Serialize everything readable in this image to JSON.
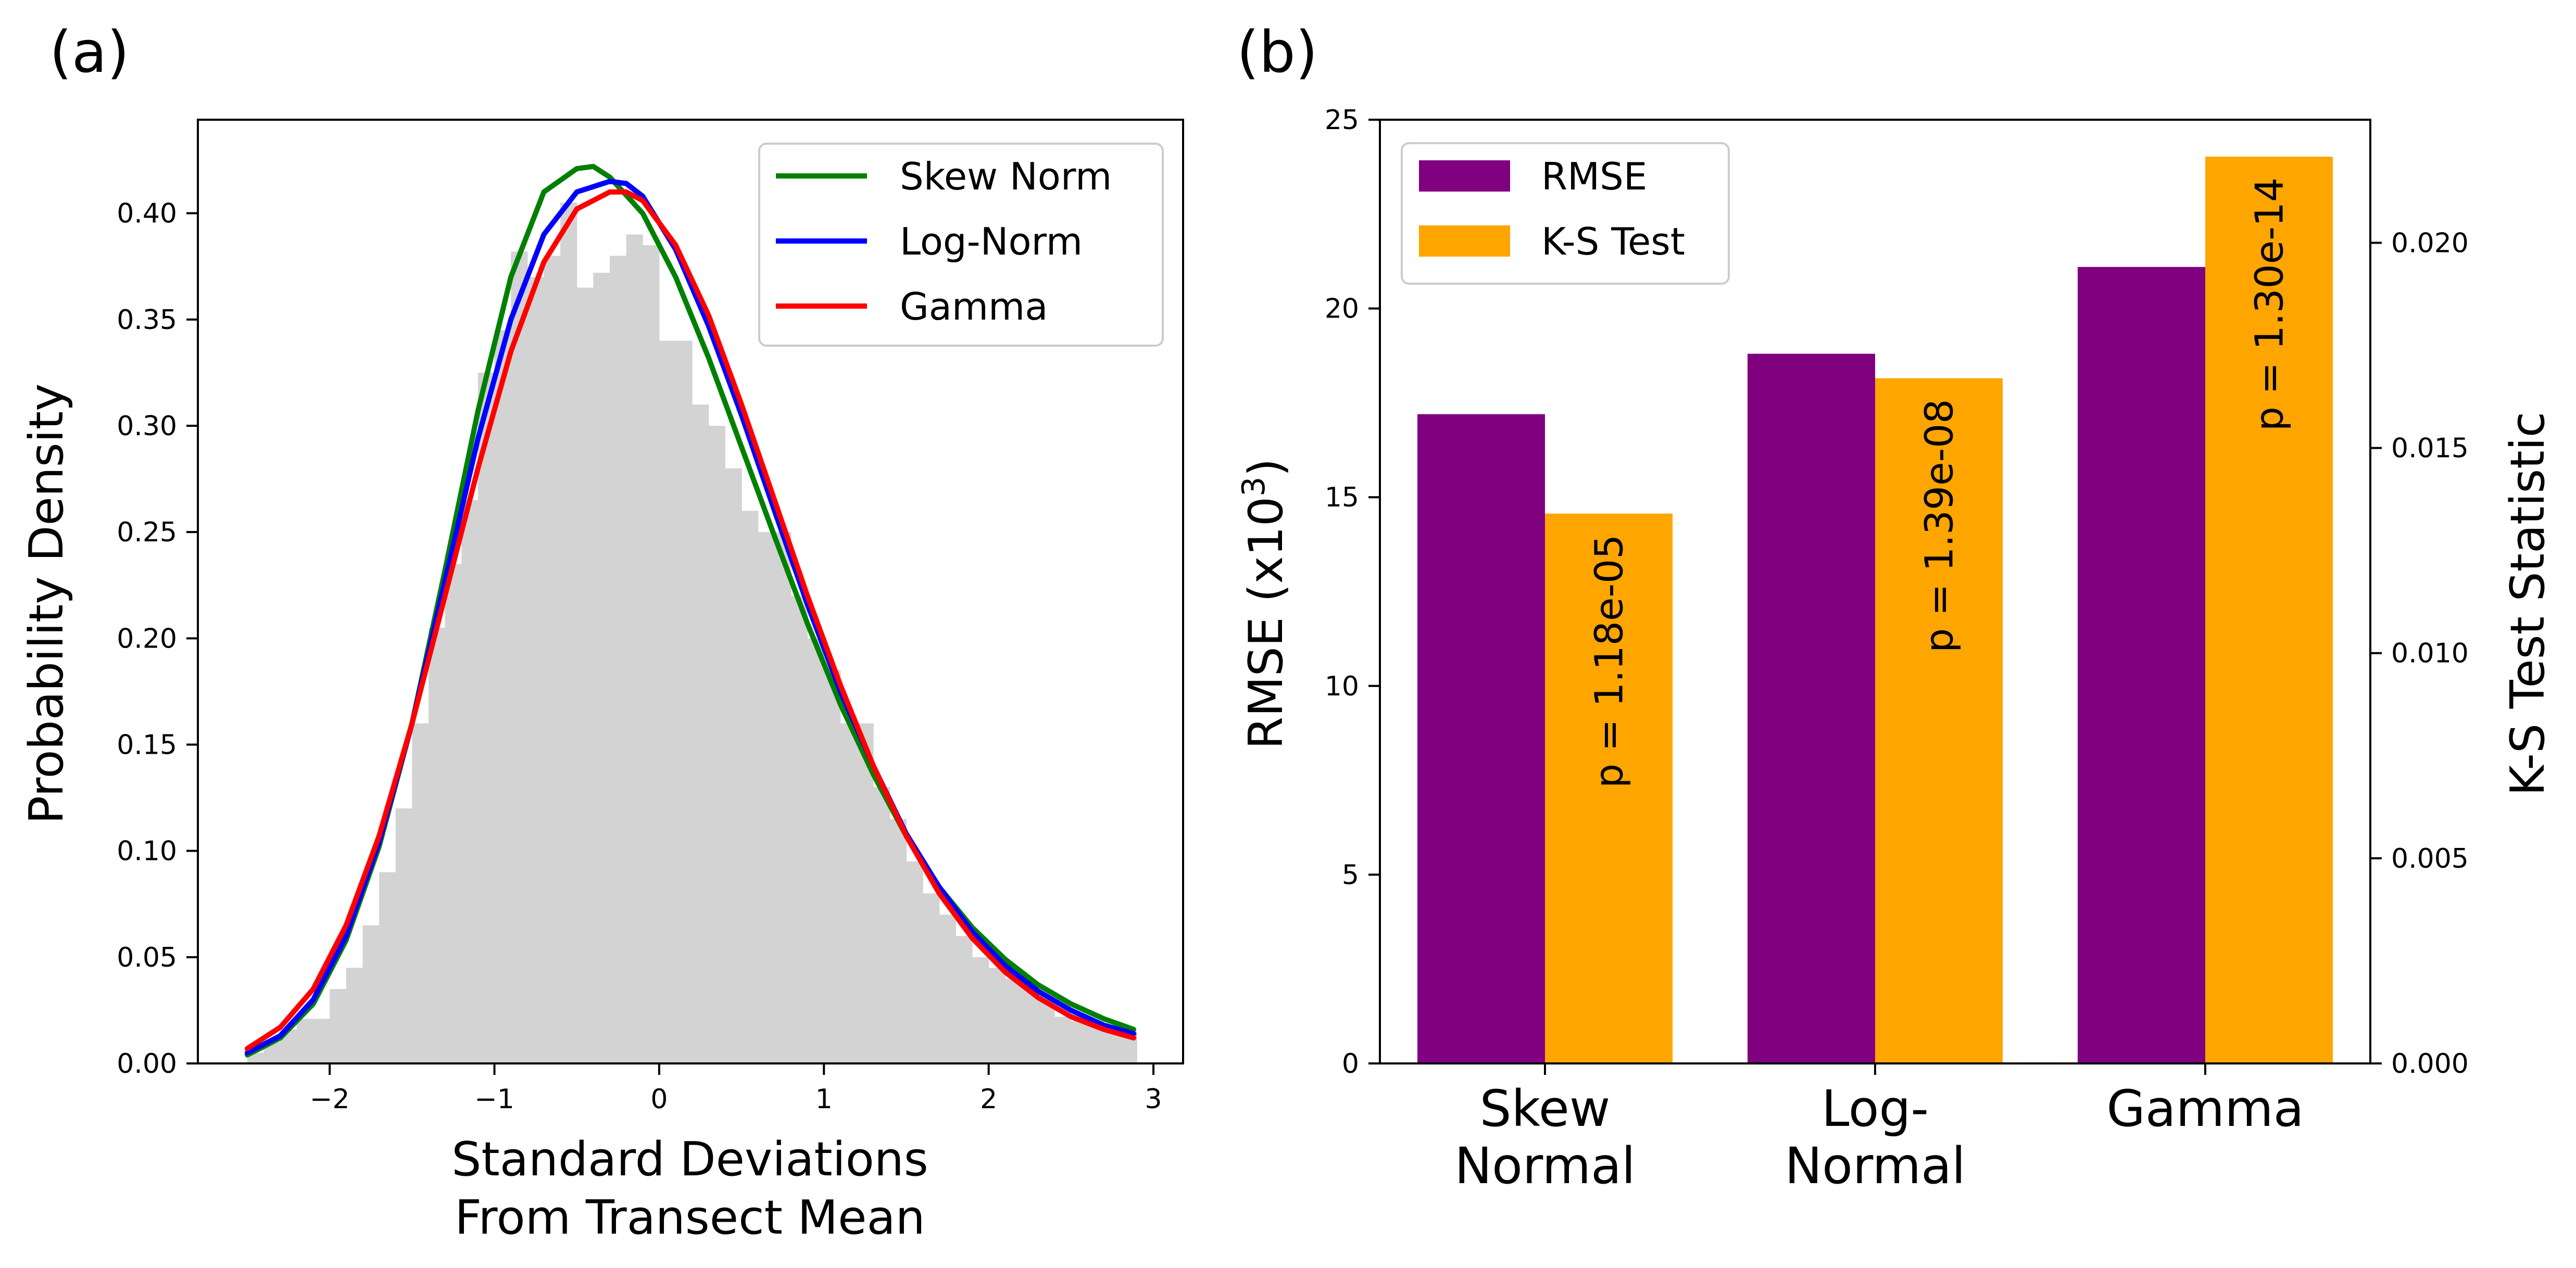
{
  "chart_data": [
    {
      "panel_label": "(a)",
      "type": "histogram+line",
      "xlabel_lines": [
        "Standard Deviations",
        "From Transect Mean"
      ],
      "ylabel": "Probability Density",
      "xlim": [
        -2.8,
        3.18
      ],
      "ylim": [
        0.0,
        0.444
      ],
      "xticks": [
        -2,
        -1,
        0,
        1,
        2,
        3
      ],
      "xtick_labels": [
        "−2",
        "−1",
        "0",
        "1",
        "2",
        "3"
      ],
      "yticks": [
        0.0,
        0.05,
        0.1,
        0.15,
        0.2,
        0.25,
        0.3,
        0.35,
        0.4
      ],
      "ytick_labels": [
        "0.00",
        "0.05",
        "0.10",
        "0.15",
        "0.20",
        "0.25",
        "0.30",
        "0.35",
        "0.40"
      ],
      "histogram": {
        "color": "#d3d3d3",
        "x_start": -2.5,
        "bin_width": 0.1,
        "values": [
          0.005,
          0.01,
          0.016,
          0.021,
          0.021,
          0.035,
          0.045,
          0.065,
          0.09,
          0.12,
          0.16,
          0.205,
          0.235,
          0.265,
          0.325,
          0.345,
          0.382,
          0.37,
          0.38,
          0.405,
          0.365,
          0.372,
          0.38,
          0.39,
          0.385,
          0.34,
          0.34,
          0.31,
          0.3,
          0.28,
          0.26,
          0.25,
          0.25,
          0.22,
          0.2,
          0.185,
          0.16,
          0.16,
          0.13,
          0.115,
          0.095,
          0.08,
          0.07,
          0.06,
          0.05,
          0.045,
          0.04,
          0.035,
          0.03,
          0.022,
          0.02,
          0.018,
          0.016,
          0.015
        ]
      },
      "series": [
        {
          "name": "Skew Norm",
          "color": "#008000",
          "x": [
            -2.5,
            -2.3,
            -2.1,
            -1.9,
            -1.7,
            -1.5,
            -1.3,
            -1.1,
            -0.9,
            -0.7,
            -0.5,
            -0.4,
            -0.3,
            -0.1,
            0.1,
            0.3,
            0.5,
            0.7,
            0.9,
            1.1,
            1.3,
            1.5,
            1.7,
            1.9,
            2.1,
            2.3,
            2.5,
            2.7,
            2.88
          ],
          "y": [
            0.004,
            0.012,
            0.028,
            0.058,
            0.102,
            0.16,
            0.232,
            0.307,
            0.37,
            0.41,
            0.421,
            0.422,
            0.417,
            0.4,
            0.37,
            0.332,
            0.29,
            0.248,
            0.207,
            0.169,
            0.136,
            0.107,
            0.083,
            0.064,
            0.049,
            0.037,
            0.028,
            0.021,
            0.016
          ]
        },
        {
          "name": "Log-Norm",
          "color": "#0000ff",
          "x": [
            -2.5,
            -2.3,
            -2.1,
            -1.9,
            -1.7,
            -1.5,
            -1.3,
            -1.1,
            -0.9,
            -0.7,
            -0.5,
            -0.3,
            -0.2,
            -0.1,
            0.1,
            0.3,
            0.5,
            0.7,
            0.9,
            1.1,
            1.3,
            1.5,
            1.7,
            1.9,
            2.1,
            2.3,
            2.5,
            2.7,
            2.88
          ],
          "y": [
            0.005,
            0.013,
            0.03,
            0.06,
            0.104,
            0.16,
            0.227,
            0.294,
            0.35,
            0.39,
            0.41,
            0.415,
            0.414,
            0.408,
            0.383,
            0.347,
            0.305,
            0.26,
            0.216,
            0.175,
            0.14,
            0.108,
            0.083,
            0.062,
            0.046,
            0.034,
            0.025,
            0.018,
            0.014
          ]
        },
        {
          "name": "Gamma",
          "color": "#ff0000",
          "x": [
            -2.5,
            -2.3,
            -2.1,
            -1.9,
            -1.7,
            -1.5,
            -1.3,
            -1.1,
            -0.9,
            -0.7,
            -0.5,
            -0.3,
            -0.2,
            -0.1,
            0.1,
            0.3,
            0.5,
            0.7,
            0.9,
            1.1,
            1.3,
            1.5,
            1.7,
            1.9,
            2.1,
            2.3,
            2.5,
            2.7,
            2.88
          ],
          "y": [
            0.007,
            0.017,
            0.035,
            0.065,
            0.107,
            0.16,
            0.22,
            0.28,
            0.335,
            0.377,
            0.402,
            0.41,
            0.41,
            0.406,
            0.385,
            0.352,
            0.31,
            0.265,
            0.22,
            0.178,
            0.14,
            0.107,
            0.08,
            0.059,
            0.043,
            0.031,
            0.022,
            0.016,
            0.012
          ]
        }
      ],
      "legend_position": "top-right"
    },
    {
      "panel_label": "(b)",
      "type": "bar",
      "category_labels": [
        [
          "Skew",
          "Normal"
        ],
        [
          "Log-",
          "Normal"
        ],
        [
          "Gamma"
        ]
      ],
      "ylabel_left": "RMSE (x10",
      "ylabel_left_sup": "3",
      "ylabel_left_suffix": ")",
      "ylabel_right": "K-S Test Statistic",
      "ylim_left": [
        0,
        25
      ],
      "ylim_right": [
        0,
        0.023
      ],
      "yticks_left": [
        0,
        5,
        10,
        15,
        20,
        25
      ],
      "ytick_labels_left": [
        "0",
        "5",
        "10",
        "15",
        "20",
        "25"
      ],
      "yticks_right": [
        0.0,
        0.005,
        0.01,
        0.015,
        0.02
      ],
      "ytick_labels_right": [
        "0.000",
        "0.005",
        "0.010",
        "0.015",
        "0.020"
      ],
      "series": [
        {
          "name": "RMSE",
          "color": "#800080",
          "axis": "left",
          "values": [
            17.2,
            18.8,
            21.1
          ]
        },
        {
          "name": "K-S Test",
          "color": "#ffa500",
          "axis": "right",
          "values": [
            0.0134,
            0.0167,
            0.0221
          ]
        }
      ],
      "annotations": [
        "p = 1.18e-05",
        "p = 1.39e-08",
        "p = 1.30e-14"
      ],
      "legend_position": "top-left"
    }
  ]
}
